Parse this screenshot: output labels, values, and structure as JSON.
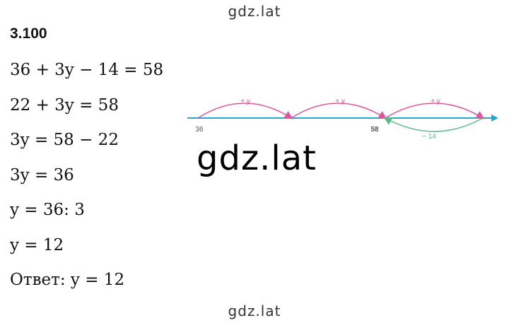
{
  "header": {
    "watermark": "gdz.lat"
  },
  "task": {
    "number": "3.100",
    "lines": [
      "36 + 3y − 14 = 58",
      "22 + 3y = 58",
      "3y = 58 − 22",
      "3y = 36",
      "y = 36: 3",
      "y = 12",
      "Ответ: y = 12"
    ]
  },
  "diagram": {
    "arcs": [
      "+ y",
      "+ y",
      "+ y"
    ],
    "start": "36",
    "end": "58",
    "back": "− 14"
  },
  "overlay": "gdz.lat",
  "footer": "gdz.lat"
}
